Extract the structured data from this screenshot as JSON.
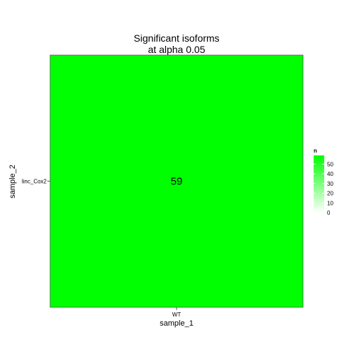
{
  "chart_data": {
    "type": "heatmap",
    "title_lines": [
      "Significant isoforms",
      "at alpha 0.05"
    ],
    "xlabel": "sample_1",
    "ylabel": "sample_2",
    "x_categories": [
      "WT"
    ],
    "y_categories": [
      "linc_Cox2"
    ],
    "cells": [
      {
        "x": "WT",
        "y": "linc_Cox2",
        "value": 59,
        "label": "59"
      }
    ],
    "legend": {
      "title": "n",
      "min": 0,
      "max": 59,
      "ticks": [
        0,
        10,
        20,
        30,
        40,
        50
      ],
      "low_color": "#ffffff",
      "high_color": "#00ff00"
    },
    "grid": false
  }
}
